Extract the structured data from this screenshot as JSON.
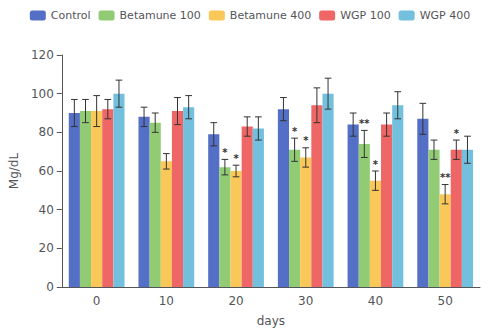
{
  "chart_data": {
    "type": "bar",
    "categories": [
      "0",
      "10",
      "20",
      "30",
      "40",
      "50"
    ],
    "xlabel": "days",
    "ylabel": "Mg/dL",
    "ylim": [
      0,
      120
    ],
    "yticks": [
      0,
      20,
      40,
      60,
      80,
      100,
      120
    ],
    "grid": false,
    "legend": "upper center",
    "series": [
      {
        "name": "Control",
        "values": [
          90,
          88,
          79,
          92,
          84,
          87
        ],
        "errors": [
          7,
          5,
          6,
          6,
          6,
          8
        ]
      },
      {
        "name": "Betamune 100",
        "values": [
          91,
          85,
          62,
          71,
          74,
          71
        ],
        "errors": [
          6,
          5,
          4,
          6,
          7,
          5
        ]
      },
      {
        "name": "Betamune 400",
        "values": [
          91,
          65,
          60,
          67,
          55,
          48
        ],
        "errors": [
          8,
          4,
          3,
          5,
          5,
          5
        ]
      },
      {
        "name": "WGP 100",
        "values": [
          92,
          91,
          83,
          94,
          84,
          71
        ],
        "errors": [
          5,
          7,
          5,
          9,
          6,
          5
        ]
      },
      {
        "name": "WGP 400",
        "values": [
          100,
          93,
          82,
          100,
          94,
          71
        ],
        "errors": [
          7,
          6,
          6,
          8,
          7,
          7
        ]
      }
    ],
    "annotations": [
      {
        "category": "20",
        "series": "Betamune 100",
        "label": "*"
      },
      {
        "category": "20",
        "series": "Betamune 400",
        "label": "*"
      },
      {
        "category": "30",
        "series": "Betamune 100",
        "label": "*"
      },
      {
        "category": "30",
        "series": "Betamune 400",
        "label": "*"
      },
      {
        "category": "40",
        "series": "Betamune 100",
        "label": "**"
      },
      {
        "category": "40",
        "series": "Betamune 400",
        "label": "*"
      },
      {
        "category": "50",
        "series": "Betamune 400",
        "label": "**"
      },
      {
        "category": "50",
        "series": "WGP 100",
        "label": "*"
      }
    ]
  }
}
